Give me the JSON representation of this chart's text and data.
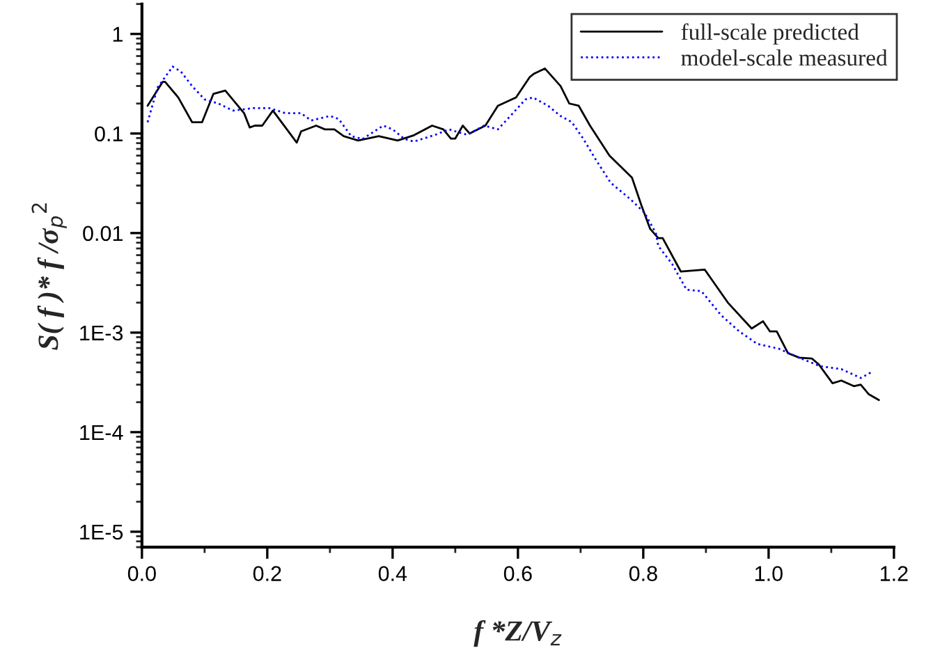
{
  "chart_data": {
    "type": "line",
    "xlabel": "f *Z/V$_{z}$",
    "ylabel": "S( f )* f /σ$_{p}$$^{2}$",
    "log": "y",
    "xlim": [
      0,
      1.2
    ],
    "xticks": [
      {
        "value": 0,
        "label": "0.0"
      },
      0.2,
      0.4,
      0.6,
      0.8,
      {
        "value": 1,
        "label": "1.0"
      },
      1.2
    ],
    "ylim": [
      7e-06,
      2
    ],
    "yticks": [
      {
        "value": 1e-05,
        "label": "1E-5"
      },
      {
        "value": 0.0001,
        "label": "1E-4"
      },
      {
        "value": 0.001,
        "label": "1E-3"
      },
      0.01,
      0.1,
      1
    ],
    "grid": false,
    "legend": "top right",
    "marker": "none",
    "series": [
      {
        "name": "full-scale predicted",
        "color": "#000000",
        "line_style": "solid",
        "x": [
          0.009,
          0.033,
          0.037,
          0.058,
          0.08,
          0.096,
          0.114,
          0.133,
          0.163,
          0.172,
          0.18,
          0.192,
          0.209,
          0.247,
          0.254,
          0.278,
          0.292,
          0.307,
          0.322,
          0.345,
          0.378,
          0.408,
          0.434,
          0.463,
          0.481,
          0.493,
          0.5,
          0.512,
          0.523,
          0.548,
          0.568,
          0.597,
          0.619,
          0.626,
          0.643,
          0.668,
          0.682,
          0.697,
          0.715,
          0.746,
          0.782,
          0.797,
          0.811,
          0.824,
          0.831,
          0.86,
          0.898,
          0.935,
          0.973,
          0.991,
          1.002,
          1.013,
          1.031,
          1.049,
          1.069,
          1.08,
          1.102,
          1.116,
          1.136,
          1.147,
          1.16,
          1.176
        ],
        "values": [
          0.19,
          0.33,
          0.33,
          0.23,
          0.13,
          0.13,
          0.25,
          0.27,
          0.16,
          0.115,
          0.12,
          0.12,
          0.17,
          0.081,
          0.105,
          0.12,
          0.11,
          0.11,
          0.094,
          0.085,
          0.094,
          0.085,
          0.096,
          0.12,
          0.11,
          0.089,
          0.089,
          0.12,
          0.1,
          0.12,
          0.19,
          0.23,
          0.37,
          0.4,
          0.45,
          0.3,
          0.2,
          0.19,
          0.12,
          0.06,
          0.036,
          0.019,
          0.011,
          0.0089,
          0.0089,
          0.0041,
          0.0043,
          0.002,
          0.0011,
          0.0013,
          0.00103,
          0.00103,
          0.00062,
          0.00056,
          0.00055,
          0.00048,
          0.00031,
          0.00033,
          0.00029,
          0.0003,
          0.00024,
          0.00021
        ]
      },
      {
        "name": "model-scale measured",
        "color": "#0000ff",
        "line_style": "dotted",
        "x": [
          0.009,
          0.025,
          0.049,
          0.062,
          0.08,
          0.1,
          0.122,
          0.145,
          0.178,
          0.203,
          0.229,
          0.254,
          0.27,
          0.3,
          0.314,
          0.334,
          0.352,
          0.385,
          0.4,
          0.419,
          0.434,
          0.468,
          0.49,
          0.519,
          0.546,
          0.568,
          0.592,
          0.612,
          0.624,
          0.648,
          0.668,
          0.686,
          0.704,
          0.724,
          0.748,
          0.779,
          0.802,
          0.82,
          0.824,
          0.846,
          0.869,
          0.893,
          0.924,
          0.953,
          0.982,
          1.016,
          1.049,
          1.082,
          1.116,
          1.147,
          1.167
        ],
        "values": [
          0.13,
          0.29,
          0.47,
          0.42,
          0.3,
          0.22,
          0.2,
          0.17,
          0.18,
          0.18,
          0.16,
          0.16,
          0.135,
          0.15,
          0.14,
          0.094,
          0.088,
          0.12,
          0.11,
          0.088,
          0.083,
          0.097,
          0.11,
          0.097,
          0.12,
          0.11,
          0.16,
          0.22,
          0.23,
          0.19,
          0.15,
          0.13,
          0.089,
          0.055,
          0.032,
          0.022,
          0.016,
          0.01,
          0.0074,
          0.0049,
          0.0027,
          0.0026,
          0.0015,
          0.00103,
          0.00077,
          0.00069,
          0.00056,
          0.00046,
          0.00043,
          0.00035,
          0.00041
        ]
      }
    ]
  }
}
